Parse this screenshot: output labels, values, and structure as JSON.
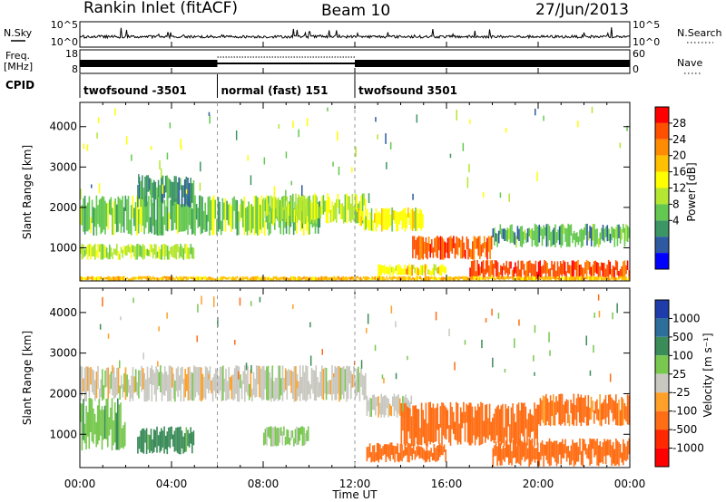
{
  "header": {
    "station": "Rankin Inlet (fitACF)",
    "beam": "Beam 10",
    "date": "27/Jun/2013"
  },
  "labels": {
    "nsky": "N.Sky",
    "nsearch": "N.Search",
    "freq_1": "Freq.",
    "freq_2": "[MHz]",
    "nave": "Nave",
    "cpid": "CPID",
    "slant_range": "Slant Range [km]",
    "time_ut": "Time UT",
    "power": "Power [dB]",
    "velocity": "Velocity [m s⁻¹]"
  },
  "noise_axis": {
    "left": [
      "10^5",
      "10^0"
    ],
    "right": [
      "10^5",
      "10^0"
    ]
  },
  "freq_axis": {
    "left": [
      "18",
      "8"
    ],
    "right": [
      "60",
      "0"
    ]
  },
  "cpid_segments": [
    {
      "label": "twofsound -3501",
      "start": 0,
      "end": 6
    },
    {
      "label": "normal (fast) 151",
      "start": 6,
      "end": 12
    },
    {
      "label": "twofsound 3501",
      "start": 12,
      "end": 24
    }
  ],
  "time_ticks": [
    "00:00",
    "04:00",
    "08:00",
    "12:00",
    "16:00",
    "20:00",
    "00:00"
  ],
  "range_ticks": [
    "1000",
    "2000",
    "3000",
    "4000"
  ],
  "power_scale": {
    "ticks": [
      "28",
      "24",
      "20",
      "16",
      "12",
      "8",
      "4"
    ],
    "colors": [
      "#ff0000",
      "#ff5000",
      "#ff8c00",
      "#ffc000",
      "#ffff00",
      "#b4e632",
      "#64c850",
      "#3c9664",
      "#2d5aa0",
      "#0000ff"
    ]
  },
  "velocity_scale": {
    "ticks": [
      "1000",
      "500",
      "100",
      "25",
      "-25",
      "-100",
      "-500",
      "-1000"
    ],
    "colors": [
      "#1e3caa",
      "#2d6e9b",
      "#3c8c5a",
      "#78c850",
      "#c8c8c0",
      "#ffa028",
      "#ff6e14",
      "#ff2800",
      "#ff0000"
    ]
  },
  "chart_data": {
    "type": "heatmap",
    "x_unit": "hours UT",
    "x_range": [
      0,
      24
    ],
    "y_range_km": [
      180,
      4600
    ],
    "panels": [
      {
        "name": "Power",
        "unit": "dB",
        "range": [
          0,
          30
        ],
        "regions": [
          {
            "t": [
              0,
              10.5
            ],
            "r": [
              1300,
              2300
            ],
            "value": 12
          },
          {
            "t": [
              2.5,
              5
            ],
            "r": [
              2000,
              2800
            ],
            "value": 8
          },
          {
            "t": [
              8,
              12.5
            ],
            "r": [
              1600,
              2350
            ],
            "value": 14
          },
          {
            "t": [
              0,
              5
            ],
            "r": [
              700,
              1100
            ],
            "value": 14
          },
          {
            "t": [
              12,
              15
            ],
            "r": [
              1400,
              2000
            ],
            "value": 16
          },
          {
            "t": [
              14.5,
              18
            ],
            "r": [
              700,
              1300
            ],
            "value": 26
          },
          {
            "t": [
              17,
              24
            ],
            "r": [
              200,
              700
            ],
            "value": 26
          },
          {
            "t": [
              13,
              16
            ],
            "r": [
              300,
              600
            ],
            "value": 18
          },
          {
            "t": [
              18,
              24
            ],
            "r": [
              1000,
              1600
            ],
            "value": 10
          },
          {
            "t": [
              0,
              24
            ],
            "r": [
              180,
              300
            ],
            "value": 20
          }
        ]
      },
      {
        "name": "Velocity",
        "unit": "m s^-1",
        "range": [
          -1000,
          1000
        ],
        "regions": [
          {
            "t": [
              0,
              12.5
            ],
            "r": [
              1800,
              2700
            ],
            "value": 0
          },
          {
            "t": [
              12.5,
              14.5
            ],
            "r": [
              1400,
              2000
            ],
            "value": 0
          },
          {
            "t": [
              0,
              2
            ],
            "r": [
              600,
              1900
            ],
            "value": 90
          },
          {
            "t": [
              2.5,
              5
            ],
            "r": [
              500,
              1200
            ],
            "value": 150
          },
          {
            "t": [
              8,
              10
            ],
            "r": [
              700,
              1200
            ],
            "value": 80
          },
          {
            "t": [
              14,
              20
            ],
            "r": [
              700,
              1800
            ],
            "value": -300
          },
          {
            "t": [
              12.5,
              16
            ],
            "r": [
              300,
              800
            ],
            "value": -200
          },
          {
            "t": [
              18,
              24
            ],
            "r": [
              200,
              900
            ],
            "value": -300
          },
          {
            "t": [
              20,
              24
            ],
            "r": [
              1200,
              2000
            ],
            "value": -150
          }
        ]
      }
    ]
  }
}
